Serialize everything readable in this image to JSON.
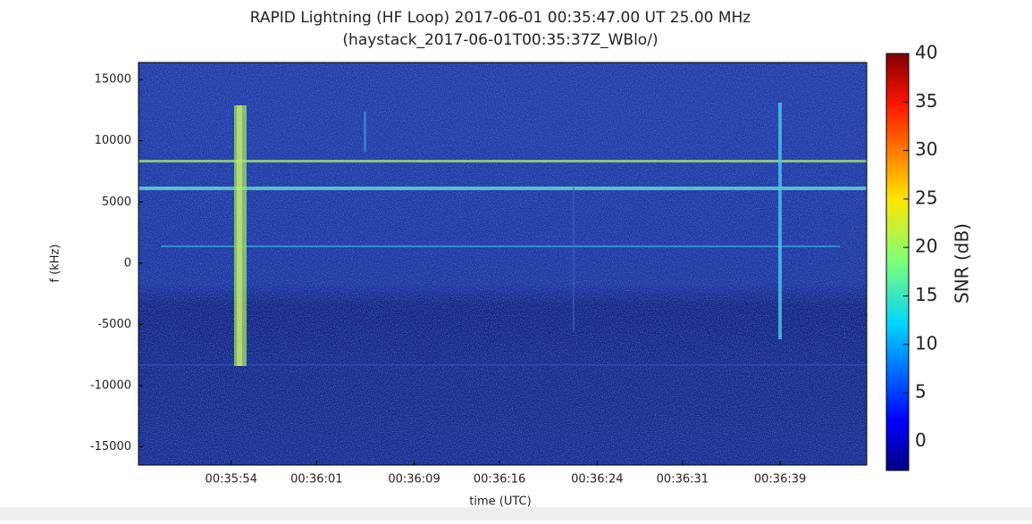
{
  "chart_data": {
    "type": "spectrogram",
    "title": "RAPID Lightning (HF Loop) 2017-06-01 00:35:47.00 UT 25.00 MHz",
    "subtitle": "(haystack_2017-06-01T00:35:37Z_WBlo/)",
    "xlabel": "time (UTC)",
    "ylabel": "f (kHz)",
    "xlim": [
      46.4,
      106.1
    ],
    "xticks": [
      {
        "value": 54,
        "label": "00:35:54"
      },
      {
        "value": 61,
        "label": "00:36:01"
      },
      {
        "value": 69,
        "label": "00:36:09"
      },
      {
        "value": 76,
        "label": "00:36:16"
      },
      {
        "value": 84,
        "label": "00:36:24"
      },
      {
        "value": 91,
        "label": "00:36:31"
      },
      {
        "value": 99,
        "label": "00:36:39"
      }
    ],
    "ylim": [
      -16500,
      16400
    ],
    "yticks": [
      -15000,
      -10000,
      -5000,
      0,
      5000,
      10000,
      15000
    ],
    "colorbar": {
      "label": "SNR (dB)",
      "lim": [
        -3,
        40
      ],
      "ticks": [
        0,
        5,
        10,
        15,
        20,
        25,
        30,
        35,
        40
      ],
      "colormap": "jet"
    }
  }
}
